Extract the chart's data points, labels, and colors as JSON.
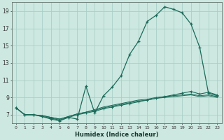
{
  "xlabel": "Humidex (Indice chaleur)",
  "bg_color": "#cce8e0",
  "grid_color": "#aacfc8",
  "line_color": "#1a6b5a",
  "xlim": [
    -0.5,
    23.5
  ],
  "ylim": [
    6.0,
    20.0
  ],
  "xticks": [
    0,
    1,
    2,
    3,
    4,
    5,
    6,
    7,
    8,
    9,
    10,
    11,
    12,
    13,
    14,
    15,
    16,
    17,
    18,
    19,
    20,
    21,
    22,
    23
  ],
  "yticks": [
    7,
    9,
    11,
    13,
    15,
    17,
    19
  ],
  "series1_x": [
    0,
    1,
    2,
    3,
    4,
    5,
    6,
    7,
    8,
    9,
    10,
    11,
    12,
    13,
    14,
    15,
    16,
    17,
    18,
    19,
    20,
    21,
    22,
    23
  ],
  "series1_y": [
    7.8,
    7.0,
    7.0,
    6.8,
    6.5,
    6.3,
    6.7,
    6.5,
    10.3,
    7.2,
    9.2,
    10.2,
    11.5,
    14.0,
    15.5,
    17.8,
    18.5,
    19.5,
    19.2,
    18.8,
    17.5,
    14.8,
    9.5,
    9.2
  ],
  "series2_x": [
    0,
    1,
    2,
    3,
    4,
    5,
    6,
    7,
    8,
    9,
    10,
    11,
    12,
    13,
    14,
    15,
    16,
    17,
    18,
    19,
    20,
    21,
    22,
    23
  ],
  "series2_y": [
    7.8,
    7.0,
    7.0,
    6.8,
    6.6,
    6.4,
    6.7,
    7.0,
    7.2,
    7.4,
    7.7,
    7.9,
    8.1,
    8.3,
    8.5,
    8.7,
    8.9,
    9.1,
    9.3,
    9.5,
    9.7,
    9.4,
    9.6,
    9.3
  ],
  "series3_x": [
    0,
    1,
    2,
    3,
    4,
    5,
    6,
    7,
    8,
    9,
    10,
    11,
    12,
    13,
    14,
    15,
    16,
    17,
    18,
    19,
    20,
    21,
    22,
    23
  ],
  "series3_y": [
    7.8,
    7.0,
    7.0,
    6.9,
    6.7,
    6.5,
    6.8,
    7.1,
    7.3,
    7.5,
    7.8,
    8.0,
    8.2,
    8.4,
    8.6,
    8.7,
    8.9,
    9.0,
    9.1,
    9.2,
    9.3,
    9.1,
    9.2,
    9.0
  ],
  "series4_x": [
    0,
    1,
    2,
    3,
    4,
    5,
    6,
    7,
    8,
    9,
    10,
    11,
    12,
    13,
    14,
    15,
    16,
    17,
    18,
    19,
    20,
    21,
    22,
    23
  ],
  "series4_y": [
    7.8,
    7.0,
    7.0,
    6.9,
    6.7,
    6.5,
    6.8,
    7.1,
    7.3,
    7.6,
    7.9,
    8.1,
    8.3,
    8.5,
    8.7,
    8.8,
    9.0,
    9.1,
    9.2,
    9.3,
    9.4,
    9.2,
    9.3,
    9.1
  ]
}
